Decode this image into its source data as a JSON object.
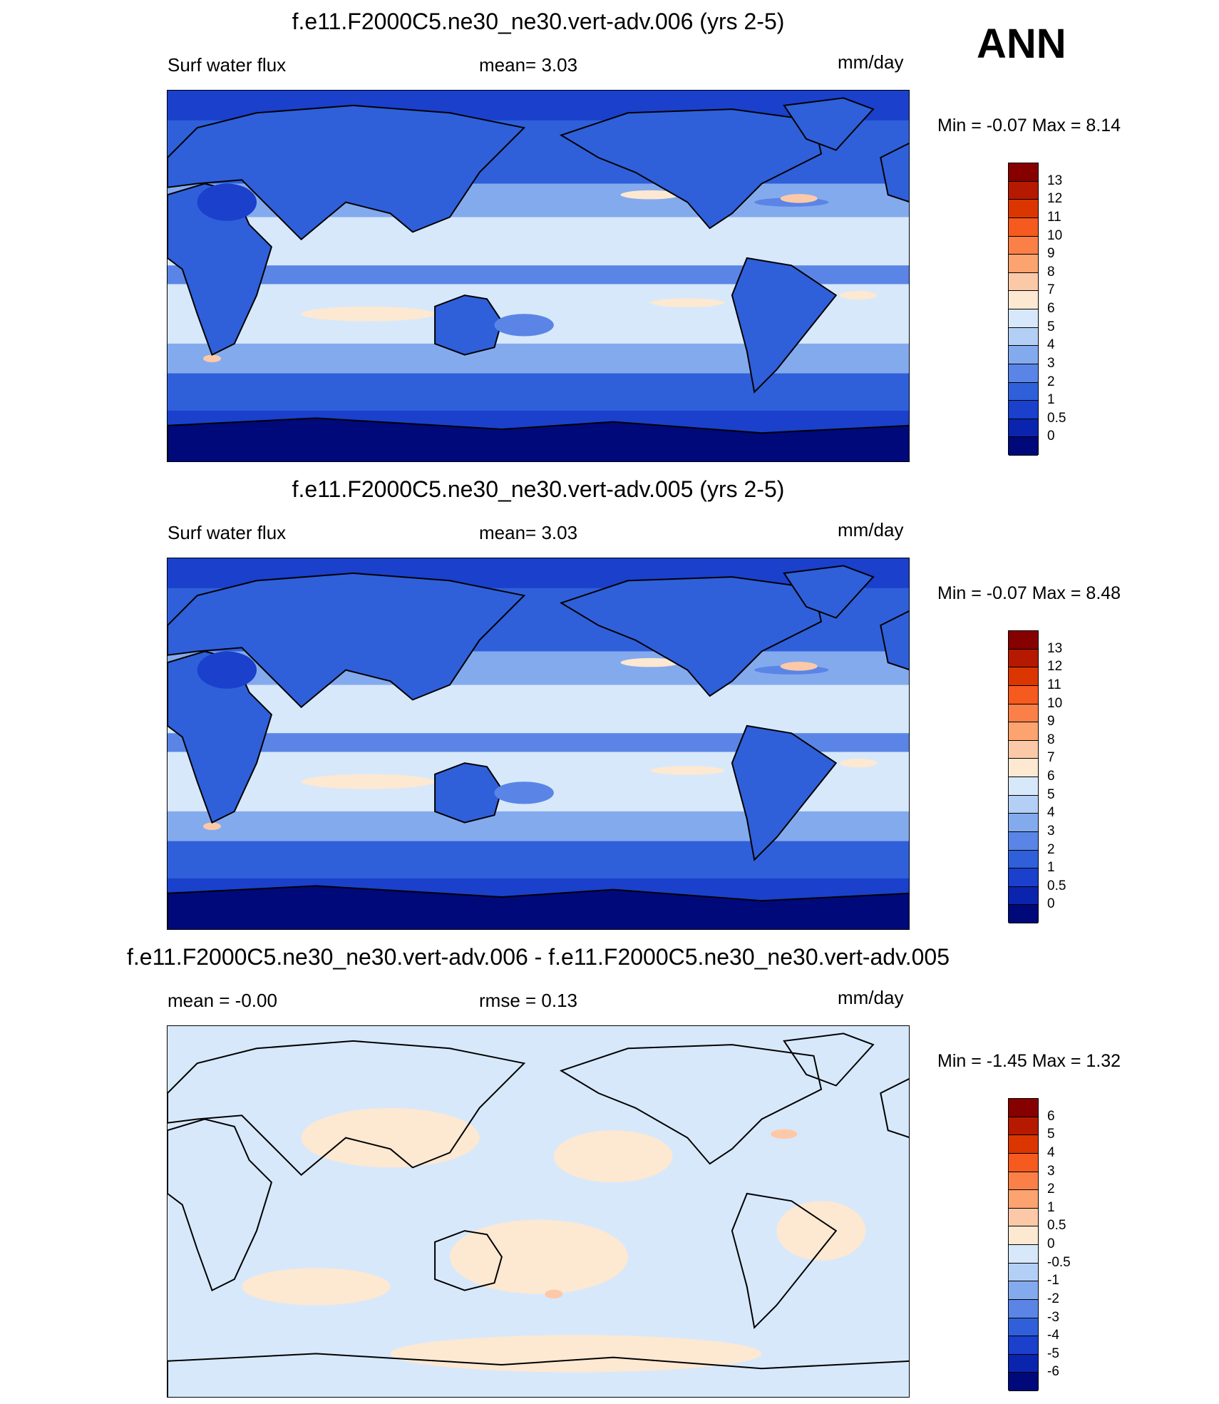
{
  "season": "ANN",
  "panels": [
    {
      "title": "f.e11.F2000C5.ne30_ne30.vert-adv.006 (yrs 2-5)",
      "left_label": "Surf water flux",
      "center_label": "mean=   3.03",
      "units": "mm/day",
      "minmax": "Min =  -0.07 Max =   8.14",
      "colorbar_labels": [
        "13",
        "12",
        "11",
        "10",
        "9",
        "8",
        "7",
        "6",
        "5",
        "4",
        "3",
        "2",
        "1",
        "0.5",
        "0"
      ],
      "colors": [
        "#870000",
        "#b51a00",
        "#db3600",
        "#f55a1e",
        "#fa8048",
        "#fca370",
        "#fcc9a8",
        "#fde8d2",
        "#d7e8fb",
        "#b4cff5",
        "#84aaee",
        "#5a85e6",
        "#2f60da",
        "#1a40cc",
        "#0a24ad",
        "#00097a"
      ]
    },
    {
      "title": "f.e11.F2000C5.ne30_ne30.vert-adv.005 (yrs 2-5)",
      "left_label": "Surf water flux",
      "center_label": "mean=   3.03",
      "units": "mm/day",
      "minmax": "Min =  -0.07 Max =   8.48",
      "colorbar_labels": [
        "13",
        "12",
        "11",
        "10",
        "9",
        "8",
        "7",
        "6",
        "5",
        "4",
        "3",
        "2",
        "1",
        "0.5",
        "0"
      ],
      "colors": [
        "#870000",
        "#b51a00",
        "#db3600",
        "#f55a1e",
        "#fa8048",
        "#fca370",
        "#fcc9a8",
        "#fde8d2",
        "#d7e8fb",
        "#b4cff5",
        "#84aaee",
        "#5a85e6",
        "#2f60da",
        "#1a40cc",
        "#0a24ad",
        "#00097a"
      ]
    },
    {
      "title": "f.e11.F2000C5.ne30_ne30.vert-adv.006 - f.e11.F2000C5.ne30_ne30.vert-adv.005",
      "left_label": "mean =  -0.00",
      "center_label": "rmse =   0.13",
      "units": "mm/day",
      "minmax": "Min =  -1.45 Max =   1.32",
      "colorbar_labels": [
        "6",
        "5",
        "4",
        "3",
        "2",
        "1",
        "0.5",
        "0",
        "-0.5",
        "-1",
        "-2",
        "-3",
        "-4",
        "-5",
        "-6"
      ],
      "colors": [
        "#870000",
        "#b51a00",
        "#db3600",
        "#f55a1e",
        "#fa8048",
        "#fca370",
        "#fcc9a8",
        "#fde8d2",
        "#d7e8fb",
        "#b4cff5",
        "#84aaee",
        "#5a85e6",
        "#2f60da",
        "#1a40cc",
        "#0a24ad",
        "#00097a"
      ]
    }
  ],
  "chart_data": {
    "type": "heatmap",
    "variable": "Surf water flux",
    "units": "mm/day",
    "season": "ANN",
    "maps": [
      {
        "title": "f.e11.F2000C5.ne30_ne30.vert-adv.006 (yrs 2-5)",
        "mean": 3.03,
        "min": -0.07,
        "max": 8.14,
        "levels": [
          0,
          0.5,
          1,
          2,
          3,
          4,
          5,
          6,
          7,
          8,
          9,
          10,
          11,
          12,
          13
        ]
      },
      {
        "title": "f.e11.F2000C5.ne30_ne30.vert-adv.005 (yrs 2-5)",
        "mean": 3.03,
        "min": -0.07,
        "max": 8.48,
        "levels": [
          0,
          0.5,
          1,
          2,
          3,
          4,
          5,
          6,
          7,
          8,
          9,
          10,
          11,
          12,
          13
        ]
      },
      {
        "title": "f.e11.F2000C5.ne30_ne30.vert-adv.006 - f.e11.F2000C5.ne30_ne30.vert-adv.005",
        "mean": -0.0,
        "rmse": 0.13,
        "min": -1.45,
        "max": 1.32,
        "levels": [
          -6,
          -5,
          -4,
          -3,
          -2,
          -1,
          -0.5,
          0,
          0.5,
          1,
          2,
          3,
          4,
          5,
          6
        ]
      }
    ]
  }
}
